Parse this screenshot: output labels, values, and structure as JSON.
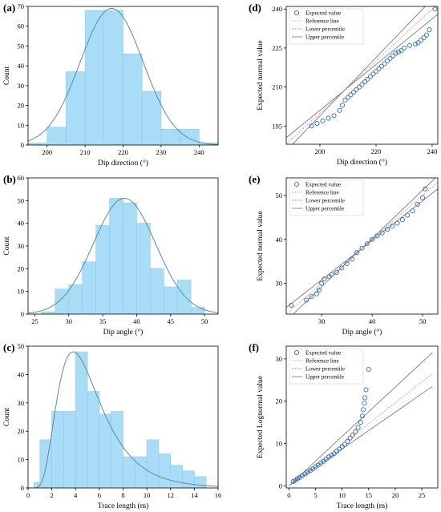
{
  "chart_data": [
    {
      "panel": "(a)",
      "type": "bar",
      "xlabel": "Dip direction (°)",
      "ylabel": "Count",
      "xlim": [
        195,
        245
      ],
      "ylim": [
        0,
        70
      ],
      "xticks": [
        200,
        210,
        220,
        230,
        240
      ],
      "yticks": [
        0,
        10,
        20,
        30,
        40,
        50,
        60,
        70
      ],
      "bins": [
        {
          "x0": 195,
          "x1": 200,
          "value": 1
        },
        {
          "x0": 200,
          "x1": 205,
          "value": 9
        },
        {
          "x0": 205,
          "x1": 210,
          "value": 37
        },
        {
          "x0": 210,
          "x1": 215,
          "value": 68
        },
        {
          "x0": 215,
          "x1": 220,
          "value": 68
        },
        {
          "x0": 220,
          "x1": 225,
          "value": 46
        },
        {
          "x0": 225,
          "x1": 230,
          "value": 27
        },
        {
          "x0": 230,
          "x1": 235,
          "value": 8
        },
        {
          "x0": 235,
          "x1": 240,
          "value": 8
        },
        {
          "x0": 240,
          "x1": 245,
          "value": 1
        }
      ],
      "fit": {
        "kind": "normal",
        "mean": 217,
        "sd": 8.3,
        "peak": 69
      }
    },
    {
      "panel": "(b)",
      "type": "bar",
      "xlabel": "Dip angle (°)",
      "ylabel": "Count",
      "xlim": [
        24,
        52
      ],
      "ylim": [
        0,
        60
      ],
      "xticks": [
        25,
        30,
        35,
        40,
        45,
        50
      ],
      "yticks": [
        0,
        10,
        20,
        30,
        40,
        50,
        60
      ],
      "bins": [
        {
          "x0": 26,
          "x1": 28,
          "value": 1
        },
        {
          "x0": 28,
          "x1": 30,
          "value": 11
        },
        {
          "x0": 30,
          "x1": 32,
          "value": 13
        },
        {
          "x0": 32,
          "x1": 34,
          "value": 23
        },
        {
          "x0": 34,
          "x1": 36,
          "value": 39
        },
        {
          "x0": 36,
          "x1": 38,
          "value": 51
        },
        {
          "x0": 38,
          "x1": 40,
          "value": 49
        },
        {
          "x0": 40,
          "x1": 42,
          "value": 40
        },
        {
          "x0": 42,
          "x1": 44,
          "value": 20
        },
        {
          "x0": 44,
          "x1": 46,
          "value": 12
        },
        {
          "x0": 46,
          "x1": 48,
          "value": 15
        },
        {
          "x0": 48,
          "x1": 50,
          "value": 3
        }
      ],
      "fit": {
        "kind": "normal",
        "mean": 38.2,
        "sd": 4.6,
        "peak": 51
      }
    },
    {
      "panel": "(c)",
      "type": "bar",
      "xlabel": "Trace length (m)",
      "ylabel": "Count",
      "xlim": [
        0,
        16
      ],
      "ylim": [
        0,
        50
      ],
      "xticks": [
        0,
        2,
        4,
        6,
        8,
        10,
        12,
        14,
        16
      ],
      "yticks": [
        0,
        10,
        20,
        30,
        40,
        50
      ],
      "bins": [
        {
          "x0": 0.5,
          "x1": 1.0,
          "value": 2
        },
        {
          "x0": 1.0,
          "x1": 2.0,
          "value": 17
        },
        {
          "x0": 2.0,
          "x1": 3.0,
          "value": 27
        },
        {
          "x0": 3.0,
          "x1": 4.0,
          "value": 27
        },
        {
          "x0": 4.0,
          "x1": 5.0,
          "value": 48
        },
        {
          "x0": 5.0,
          "x1": 6.0,
          "value": 34
        },
        {
          "x0": 6.0,
          "x1": 7.0,
          "value": 26
        },
        {
          "x0": 7.0,
          "x1": 8.0,
          "value": 27
        },
        {
          "x0": 8.0,
          "x1": 9.0,
          "value": 11
        },
        {
          "x0": 9.0,
          "x1": 10.0,
          "value": 11
        },
        {
          "x0": 10.0,
          "x1": 11.0,
          "value": 17
        },
        {
          "x0": 11.0,
          "x1": 12.0,
          "value": 12
        },
        {
          "x0": 12.0,
          "x1": 13.0,
          "value": 8
        },
        {
          "x0": 13.0,
          "x1": 14.0,
          "value": 6
        },
        {
          "x0": 14.0,
          "x1": 15.0,
          "value": 4
        }
      ],
      "fit": {
        "kind": "lognormal",
        "mode": 3.8,
        "peak": 48,
        "sigma": 0.48
      }
    },
    {
      "panel": "(d)",
      "type": "scatter",
      "xlabel": "Dip direction (°)",
      "ylabel": "Expected normal value",
      "xlim": [
        188,
        242
      ],
      "ylim": [
        188,
        241
      ],
      "xticks": [
        200,
        220,
        240
      ],
      "yticks": [
        195,
        210,
        225,
        240
      ],
      "legend": [
        "Expected value",
        "Reference line",
        "Lower percentile",
        "Upper percentile"
      ],
      "legend_position": "top-left",
      "points": [
        [
          197,
          195
        ],
        [
          199,
          196
        ],
        [
          201,
          197
        ],
        [
          203,
          198
        ],
        [
          205,
          199
        ],
        [
          207,
          201
        ],
        [
          208,
          203
        ],
        [
          209,
          205
        ],
        [
          210,
          206
        ],
        [
          211,
          207
        ],
        [
          212,
          208
        ],
        [
          213,
          209
        ],
        [
          214,
          210
        ],
        [
          215,
          211
        ],
        [
          216,
          212
        ],
        [
          217,
          213
        ],
        [
          218,
          214
        ],
        [
          219,
          215
        ],
        [
          220,
          216
        ],
        [
          221,
          217
        ],
        [
          222,
          218
        ],
        [
          223,
          219
        ],
        [
          224,
          220
        ],
        [
          225,
          221
        ],
        [
          226,
          222
        ],
        [
          227,
          223
        ],
        [
          228,
          223.5
        ],
        [
          229,
          224
        ],
        [
          230,
          225
        ],
        [
          232,
          226
        ],
        [
          234,
          226.5
        ],
        [
          235,
          227
        ],
        [
          236,
          228
        ],
        [
          237,
          229
        ],
        [
          238,
          230
        ],
        [
          239,
          232
        ],
        [
          241,
          240
        ]
      ],
      "reference_line": [
        [
          188,
          188
        ],
        [
          242,
          242
        ]
      ],
      "lower_percentile": [
        [
          188,
          190.5
        ],
        [
          242,
          238
        ]
      ],
      "upper_percentile": [
        [
          188,
          185.5
        ],
        [
          242,
          246
        ]
      ]
    },
    {
      "panel": "(e)",
      "type": "scatter",
      "xlabel": "Dip angle (°)",
      "ylabel": "Expected normal value",
      "xlim": [
        23,
        53
      ],
      "ylim": [
        23,
        54
      ],
      "xticks": [
        30,
        40,
        50
      ],
      "yticks": [
        30,
        40,
        50
      ],
      "legend": [
        "Expected value",
        "Reference line",
        "Lower percentile",
        "Upper percentile"
      ],
      "legend_position": "top-left",
      "points": [
        [
          24,
          25
        ],
        [
          27,
          26.2
        ],
        [
          28,
          27
        ],
        [
          29,
          27.6
        ],
        [
          29.5,
          28.5
        ],
        [
          30,
          30
        ],
        [
          30.5,
          31
        ],
        [
          31.5,
          31.5
        ],
        [
          32,
          32
        ],
        [
          33,
          32.5
        ],
        [
          34,
          33.5
        ],
        [
          35,
          34.5
        ],
        [
          36,
          35.5
        ],
        [
          37,
          37
        ],
        [
          38,
          38
        ],
        [
          39,
          39
        ],
        [
          40,
          40
        ],
        [
          41,
          40.8
        ],
        [
          42,
          41.5
        ],
        [
          43,
          42.3
        ],
        [
          44,
          43
        ],
        [
          45,
          43.7
        ],
        [
          46,
          44.5
        ],
        [
          47,
          45.5
        ],
        [
          48,
          46.5
        ],
        [
          49,
          48
        ],
        [
          50,
          49.5
        ],
        [
          50.5,
          51.5
        ]
      ],
      "reference_line": [
        [
          23,
          23
        ],
        [
          53,
          53
        ]
      ],
      "lower_percentile": [
        [
          23,
          24.5
        ],
        [
          53,
          51.5
        ]
      ],
      "upper_percentile": [
        [
          23,
          21.5
        ],
        [
          53,
          54.5
        ]
      ]
    },
    {
      "panel": "(f)",
      "type": "scatter",
      "xlabel": "Trace length (m)",
      "ylabel": "Expected Lognormal value",
      "xlim": [
        -0.5,
        28
      ],
      "ylim": [
        -0.5,
        33
      ],
      "xticks": [
        0,
        5,
        10,
        15,
        20,
        25
      ],
      "yticks": [
        0,
        10,
        20,
        30
      ],
      "legend": [
        "Expected value",
        "Reference line",
        "Lower percentile",
        "Upper percentile"
      ],
      "legend_position": "top-left",
      "points": [
        [
          0.8,
          1
        ],
        [
          1.2,
          1.3
        ],
        [
          1.6,
          1.7
        ],
        [
          2,
          2
        ],
        [
          2.5,
          2.4
        ],
        [
          3,
          2.8
        ],
        [
          3.5,
          3.2
        ],
        [
          4,
          3.6
        ],
        [
          4.5,
          4
        ],
        [
          5,
          4.5
        ],
        [
          5.5,
          4.9
        ],
        [
          6,
          5.4
        ],
        [
          6.5,
          5.8
        ],
        [
          7,
          6.3
        ],
        [
          7.5,
          6.8
        ],
        [
          8,
          7.2
        ],
        [
          8.5,
          7.6
        ],
        [
          9,
          8.2
        ],
        [
          9.5,
          8.7
        ],
        [
          10,
          9.3
        ],
        [
          10.5,
          9.8
        ],
        [
          11,
          10.5
        ],
        [
          11.5,
          11.3
        ],
        [
          12,
          12
        ],
        [
          12.5,
          12.8
        ],
        [
          13,
          13.8
        ],
        [
          13.5,
          15
        ],
        [
          13.8,
          16.5
        ],
        [
          14,
          18
        ],
        [
          14.2,
          19.5
        ],
        [
          14.3,
          20.8
        ],
        [
          14.5,
          22.7
        ],
        [
          15,
          27.5
        ]
      ],
      "reference_line": [
        [
          0,
          0
        ],
        [
          27,
          26.5
        ]
      ],
      "lower_percentile": [
        [
          0,
          0
        ],
        [
          27,
          23.5
        ]
      ],
      "upper_percentile": [
        [
          0,
          0
        ],
        [
          27,
          31.5
        ]
      ]
    }
  ],
  "colors": {
    "bar_fill": "#a9ddf7",
    "bar_stroke": "#8cc8ea",
    "fit_curve": "#5b8d96",
    "marker": "#2f6fc0",
    "reference_line": "#e08a8a",
    "percentile_lines": "#6e6e6e"
  }
}
